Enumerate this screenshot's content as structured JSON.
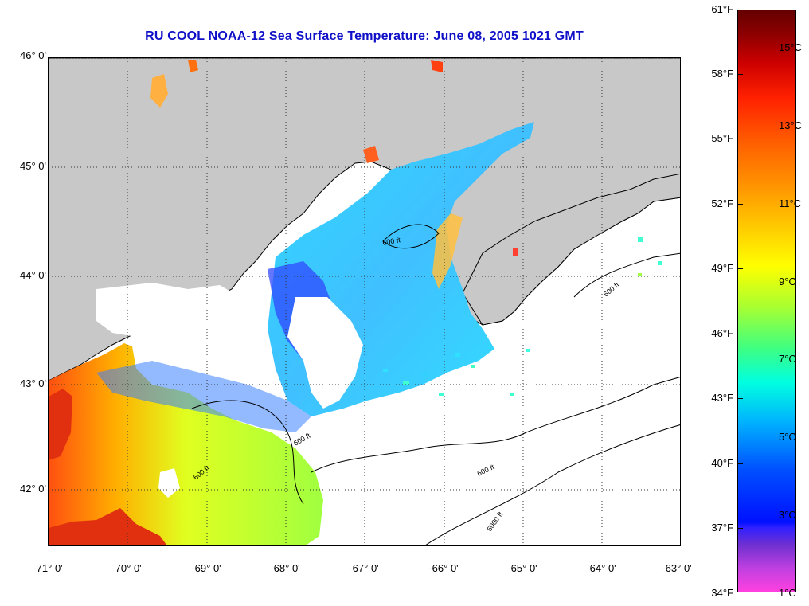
{
  "title": "RU COOL  NOAA-12  Sea Surface Temperature:  June 08, 2005 1021 GMT",
  "map": {
    "lat_labels": [
      "46° 0'",
      "45° 0'",
      "44° 0'",
      "43° 0'",
      "42° 0'"
    ],
    "lon_labels": [
      "-71° 0'",
      "-70° 0'",
      "-69° 0'",
      "-68° 0'",
      "-67° 0'",
      "-66° 0'",
      "-65° 0'",
      "-64° 0'",
      "-63° 0'"
    ],
    "contour_label": "600 ft",
    "contour_label_deep": "6000 ft",
    "colors": {
      "land": "#c8c8c8",
      "cloud": "#ffffff",
      "coast": "#000000"
    }
  },
  "colorbar": {
    "fahrenheit": [
      "61°F",
      "58°F",
      "55°F",
      "52°F",
      "49°F",
      "46°F",
      "43°F",
      "40°F",
      "37°F",
      "34°F"
    ],
    "celsius": [
      "15°C",
      "13°C",
      "11°C",
      "9°C",
      "7°C",
      "5°C",
      "3°C",
      "1°C"
    ]
  }
}
